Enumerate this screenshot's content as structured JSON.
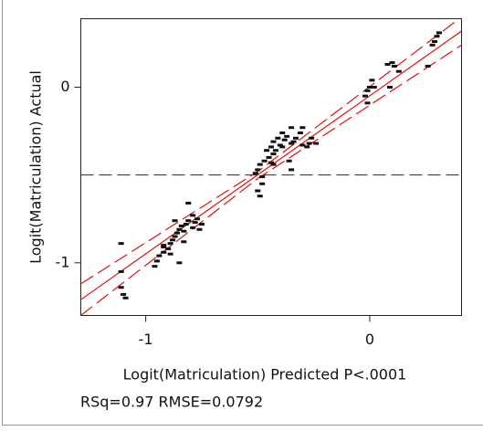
{
  "chart_data": {
    "type": "scatter",
    "x_label": "Logit(Matriculation) Predicted P<.0001",
    "y_label": "Logit(Matriculation) Actual",
    "stats": "RSq=0.97 RMSE=0.0792",
    "xlim": [
      -1.29,
      0.41
    ],
    "ylim": [
      -1.3,
      0.39
    ],
    "xticks": [
      -1,
      0
    ],
    "yticks": [
      -1,
      0
    ],
    "mean_line": {
      "value": -0.5,
      "color": "#1a1a8c"
    },
    "lines": [
      {
        "color": "#e01010",
        "dashed": false,
        "x": [
          -1.29,
          0.41
        ],
        "values": [
          -1.21,
          0.32
        ]
      },
      {
        "color": "#e01010",
        "dashed": true,
        "x": [
          -1.29,
          -0.5,
          0.41
        ],
        "values": [
          -1.12,
          -0.48,
          0.4
        ]
      },
      {
        "color": "#e01010",
        "dashed": true,
        "x": [
          -1.29,
          -0.5,
          0.41
        ],
        "values": [
          -1.3,
          -0.52,
          0.24
        ]
      }
    ],
    "series": [
      {
        "color": "#111111",
        "x": [
          -1.11,
          -1.11,
          -1.11,
          -1.1,
          -1.09,
          -0.96,
          -0.95,
          -0.94,
          -0.92,
          -0.92,
          -0.9,
          -0.89,
          -0.88,
          -0.87,
          -0.87,
          -0.86,
          -0.85,
          -0.84,
          -0.83,
          -0.82,
          -0.81,
          -0.81,
          -0.79,
          -0.79,
          -0.78,
          -0.77,
          -0.76,
          -0.75,
          -0.85,
          -0.89,
          -0.92,
          -0.83,
          -0.51,
          -0.5,
          -0.49,
          -0.48,
          -0.47,
          -0.46,
          -0.45,
          -0.44,
          -0.43,
          -0.43,
          -0.42,
          -0.41,
          -0.4,
          -0.39,
          -0.39,
          -0.38,
          -0.37,
          -0.35,
          -0.35,
          -0.34,
          -0.33,
          -0.31,
          -0.3,
          -0.3,
          -0.28,
          -0.27,
          -0.26,
          -0.5,
          -0.49,
          -0.48,
          -0.43,
          -0.44,
          -0.36,
          -0.35,
          -0.24,
          -0.02,
          -0.01,
          0.0,
          0.01,
          0.02,
          -0.01,
          0.01,
          0.09,
          0.08,
          0.1,
          0.11,
          0.13,
          0.26,
          0.28,
          0.29,
          0.3,
          0.31
        ],
        "values": [
          -0.89,
          -1.05,
          -1.14,
          -1.18,
          -1.2,
          -1.02,
          -0.99,
          -0.96,
          -0.94,
          -0.91,
          -0.92,
          -0.89,
          -0.87,
          -0.85,
          -0.76,
          -0.83,
          -0.81,
          -0.79,
          -0.82,
          -0.78,
          -0.76,
          -0.66,
          -0.73,
          -0.8,
          -0.77,
          -0.75,
          -0.81,
          -0.78,
          -1.0,
          -0.95,
          -0.9,
          -0.88,
          -0.49,
          -0.47,
          -0.44,
          -0.51,
          -0.42,
          -0.36,
          -0.4,
          -0.34,
          -0.38,
          -0.31,
          -0.36,
          -0.29,
          -0.33,
          -0.26,
          -0.34,
          -0.3,
          -0.28,
          -0.32,
          -0.23,
          -0.31,
          -0.29,
          -0.26,
          -0.33,
          -0.23,
          -0.34,
          -0.32,
          -0.29,
          -0.59,
          -0.62,
          -0.55,
          -0.44,
          -0.43,
          -0.42,
          -0.47,
          -0.32,
          -0.05,
          -0.02,
          0.0,
          0.0,
          0.0,
          -0.09,
          0.04,
          0.0,
          0.13,
          0.14,
          0.12,
          0.09,
          0.12,
          0.24,
          0.26,
          0.29,
          0.31
        ]
      }
    ]
  }
}
